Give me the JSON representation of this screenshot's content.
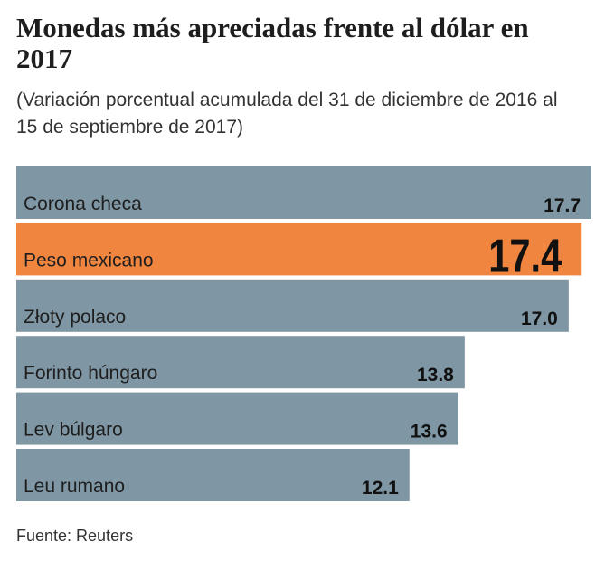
{
  "chart_data": {
    "type": "bar",
    "orientation": "horizontal",
    "title": "Monedas más apreciadas frente al dólar en 2017",
    "subtitle": "(Variación porcentual acumulada del 31 de diciembre de 2016 al 15 de septiembre de 2017)",
    "categories": [
      "Corona checa",
      "Peso mexicano",
      "Złoty polaco",
      "Forinto húngaro",
      "Lev búlgaro",
      "Leu rumano"
    ],
    "values": [
      17.7,
      17.4,
      17.0,
      13.8,
      13.6,
      12.1
    ],
    "value_labels": [
      "17.7",
      "17.4",
      "17.0",
      "13.8",
      "13.6",
      "12.1"
    ],
    "color": "#7f97a4",
    "highlight": "Peso mexicano",
    "highlight_color": "#f08540",
    "source": "Fuente: Reuters"
  }
}
